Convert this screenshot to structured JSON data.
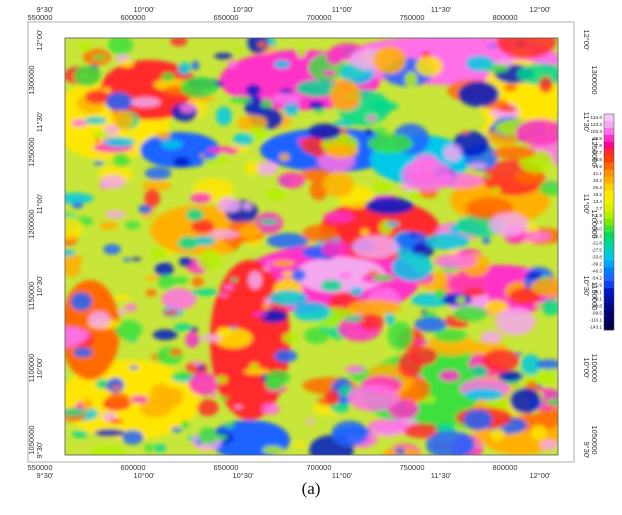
{
  "map": {
    "top_degrees": [
      "9°30'",
      "10°00'",
      "10°30'",
      "11°00'",
      "11°30'",
      "12°00'"
    ],
    "top_meters": [
      "550000",
      "600000",
      "650000",
      "700000",
      "750000",
      "800000"
    ],
    "bottom_meters": [
      "550000",
      "600000",
      "650000",
      "700000",
      "750000",
      "800000"
    ],
    "bottom_degrees": [
      "9°30'",
      "10°00'",
      "10°30'",
      "11°00'",
      "11°30'",
      "12°00'"
    ],
    "right_degrees": [
      "12°00'",
      "11°30'",
      "11°00'",
      "10°30'",
      "10°00'",
      "9°30'"
    ],
    "right_meters": [
      "1300000",
      "1250000",
      "1200000",
      "1150000",
      "1100000",
      "1050000"
    ],
    "left_degrees": [
      "12°00'",
      "11°30'",
      "11°00'",
      "10°30'",
      "10°00'",
      "9°30'"
    ],
    "left_meters": [
      "1300000",
      "1250000",
      "1200000",
      "1150000",
      "1100000",
      "1050000"
    ],
    "legend": [
      "134.0",
      "123.3",
      "103.3",
      "88.8",
      "77.8",
      "67.7",
      "58.8",
      "49.6",
      "41.1",
      "33.2",
      "26.4",
      "19.2",
      "13.4",
      "7.7",
      "1.8",
      "-3.9",
      "-10.0",
      "-16.2",
      "-21.8",
      "-27.5",
      "-33.8",
      "-39.2",
      "-46.3",
      "-54.2",
      "-61.9",
      "-70.1",
      "-78.1",
      "-88.8",
      "-99.5",
      "-110.1",
      "-143.1"
    ],
    "caption": "(a)"
  }
}
